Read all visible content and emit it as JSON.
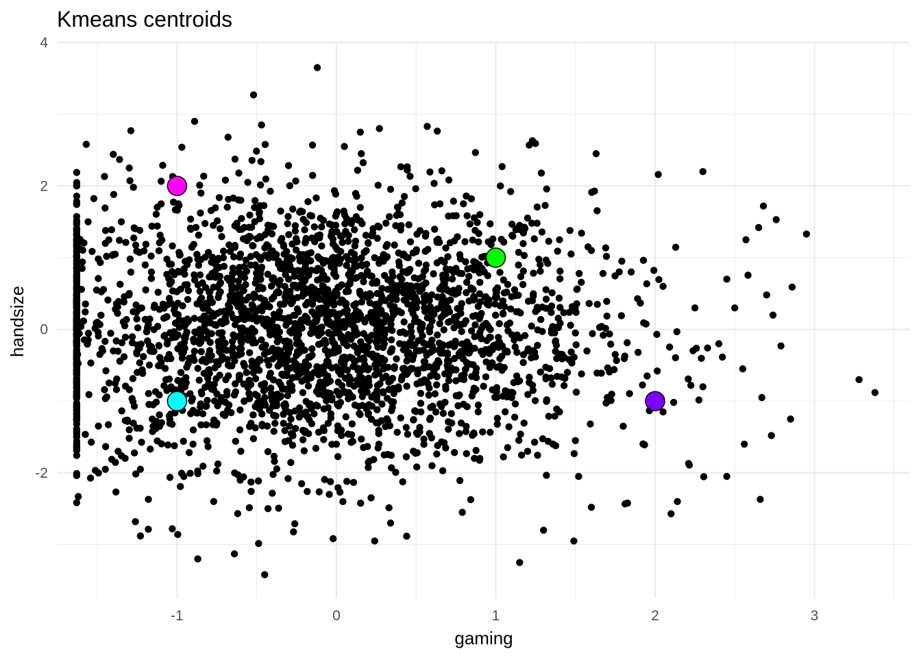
{
  "chart_data": {
    "type": "scatter",
    "title": "Kmeans centroids",
    "xlabel": "gaming",
    "ylabel": "handsize",
    "xlim": [
      -1.75,
      3.6
    ],
    "ylim": [
      -3.75,
      4.0
    ],
    "x_ticks": [
      -1,
      0,
      1,
      2,
      3
    ],
    "x_tick_labels": [
      "-1",
      "0",
      "1",
      "2",
      "3"
    ],
    "y_ticks": [
      -2,
      0,
      2,
      4
    ],
    "y_tick_labels": [
      "-2",
      "0",
      "2",
      "4"
    ],
    "grid": true,
    "legend": "none",
    "point_color": "#000000",
    "series": [
      {
        "values": [
          [
            -0.12,
            3.65
          ],
          [
            -0.52,
            3.27
          ],
          [
            -0.47,
            2.85
          ],
          [
            -0.89,
            2.9
          ],
          [
            -1.29,
            2.77
          ],
          [
            -1.57,
            2.58
          ],
          [
            0.57,
            2.83
          ],
          [
            0.15,
            2.75
          ],
          [
            0.27,
            2.8
          ],
          [
            1.23,
            2.63
          ],
          [
            1.21,
            2.57
          ],
          [
            1.63,
            2.45
          ],
          [
            2.3,
            2.2
          ],
          [
            2.02,
            2.16
          ],
          [
            -0.15,
            2.57
          ],
          [
            0.05,
            2.55
          ],
          [
            -0.68,
            2.68
          ],
          [
            -1.4,
            2.44
          ],
          [
            -1.3,
            2.25
          ],
          [
            -0.97,
            2.54
          ],
          [
            1.04,
            2.27
          ],
          [
            2.68,
            1.72
          ],
          [
            2.76,
            1.53
          ],
          [
            2.95,
            1.33
          ],
          [
            2.65,
            1.42
          ],
          [
            2.57,
            1.25
          ],
          [
            2.45,
            0.7
          ],
          [
            2.7,
            0.48
          ],
          [
            2.86,
            0.59
          ],
          [
            2.74,
            0.2
          ],
          [
            3.28,
            -0.7
          ],
          [
            3.38,
            -0.88
          ],
          [
            2.79,
            -0.23
          ],
          [
            2.5,
            0.3
          ],
          [
            2.55,
            -0.55
          ],
          [
            2.67,
            -0.95
          ],
          [
            2.73,
            -1.48
          ],
          [
            2.85,
            -1.25
          ],
          [
            2.56,
            -1.6
          ],
          [
            2.66,
            -2.37
          ],
          [
            2.45,
            -2.05
          ],
          [
            2.21,
            -1.87
          ],
          [
            2.14,
            -2.4
          ],
          [
            2.1,
            -2.57
          ],
          [
            1.15,
            -3.25
          ],
          [
            1.3,
            -2.8
          ],
          [
            1.49,
            -2.95
          ],
          [
            0.24,
            -2.95
          ],
          [
            0.34,
            -2.7
          ],
          [
            -0.45,
            -3.42
          ],
          [
            -0.64,
            -3.13
          ],
          [
            -0.87,
            -3.2
          ],
          [
            -1.23,
            -2.88
          ],
          [
            -1.03,
            -2.78
          ],
          [
            -1.62,
            -2.33
          ],
          [
            -1.18,
            -2.37
          ],
          [
            -0.77,
            -2.4
          ],
          [
            0.79,
            -2.55
          ],
          [
            1.52,
            -2.05
          ],
          [
            1.6,
            -2.48
          ],
          [
            -1.37,
            -1.7
          ],
          [
            -1.45,
            -1.95
          ],
          [
            -1.3,
            -1.4
          ],
          [
            -1.15,
            -1.05
          ],
          [
            -1.25,
            -0.6
          ],
          [
            -1.4,
            -0.3
          ],
          [
            -1.5,
            0.1
          ],
          [
            -1.3,
            0.5
          ],
          [
            -1.2,
            0.9
          ],
          [
            -1.45,
            1.2
          ],
          [
            -1.35,
            1.5
          ],
          [
            -1.1,
            1.75
          ],
          [
            -0.85,
            1.9
          ],
          [
            -0.6,
            1.8
          ],
          [
            -0.35,
            1.65
          ],
          [
            -0.1,
            1.55
          ],
          [
            0.15,
            1.7
          ],
          [
            0.4,
            1.6
          ],
          [
            0.65,
            1.75
          ],
          [
            0.9,
            1.6
          ],
          [
            1.15,
            1.45
          ],
          [
            1.4,
            1.25
          ],
          [
            1.6,
            1.1
          ],
          [
            1.85,
            0.8
          ],
          [
            2.05,
            0.6
          ],
          [
            2.25,
            0.3
          ],
          [
            2.4,
            -0.2
          ],
          [
            2.3,
            -0.8
          ],
          [
            2.05,
            -1.15
          ],
          [
            1.8,
            -1.35
          ],
          [
            1.5,
            -1.55
          ],
          [
            1.2,
            -1.7
          ],
          [
            0.9,
            -1.8
          ],
          [
            0.6,
            -1.9
          ],
          [
            0.3,
            -1.75
          ],
          [
            0.0,
            -1.6
          ],
          [
            -0.3,
            -1.55
          ],
          [
            -0.6,
            -1.7
          ],
          [
            -0.9,
            -1.6
          ],
          [
            -1.15,
            -1.35
          ],
          [
            -0.75,
            -0.9
          ],
          [
            -0.5,
            -0.5
          ],
          [
            -0.25,
            -0.2
          ],
          [
            0.0,
            0.1
          ],
          [
            0.25,
            0.35
          ],
          [
            0.5,
            0.6
          ],
          [
            0.75,
            0.85
          ],
          [
            1.0,
            0.55
          ],
          [
            1.25,
            0.25
          ],
          [
            1.5,
            -0.05
          ],
          [
            1.75,
            -0.35
          ],
          [
            1.95,
            -0.65
          ],
          [
            1.7,
            -0.95
          ],
          [
            1.4,
            -1.15
          ],
          [
            1.1,
            -0.95
          ],
          [
            0.8,
            -0.7
          ],
          [
            0.55,
            -0.45
          ],
          [
            0.3,
            -0.2
          ],
          [
            0.05,
            -0.45
          ],
          [
            -0.2,
            -0.7
          ],
          [
            -0.45,
            -0.95
          ],
          [
            -0.7,
            -1.2
          ],
          [
            -0.95,
            -0.8
          ],
          [
            -1.05,
            -0.35
          ],
          [
            -0.8,
            0.15
          ],
          [
            -0.55,
            0.45
          ],
          [
            -0.3,
            0.7
          ],
          [
            -0.05,
            0.95
          ],
          [
            0.2,
            1.2
          ],
          [
            0.45,
            1.0
          ],
          [
            0.7,
            0.3
          ],
          [
            0.95,
            0.05
          ],
          [
            1.2,
            -0.3
          ],
          [
            1.45,
            -0.6
          ],
          [
            -0.15,
            0.35
          ],
          [
            0.1,
            -0.1
          ],
          [
            -0.4,
            0.05
          ],
          [
            -0.65,
            -0.25
          ],
          [
            0.35,
            0.8
          ],
          [
            0.6,
            -0.15
          ]
        ]
      }
    ],
    "centroids": [
      {
        "x": -1,
        "y": 2,
        "color": "#ff00ff"
      },
      {
        "x": 1,
        "y": 1,
        "color": "#00ff00"
      },
      {
        "x": -1,
        "y": -1,
        "color": "#00ffff"
      },
      {
        "x": 2,
        "y": -1,
        "color": "#8000ff"
      }
    ]
  }
}
